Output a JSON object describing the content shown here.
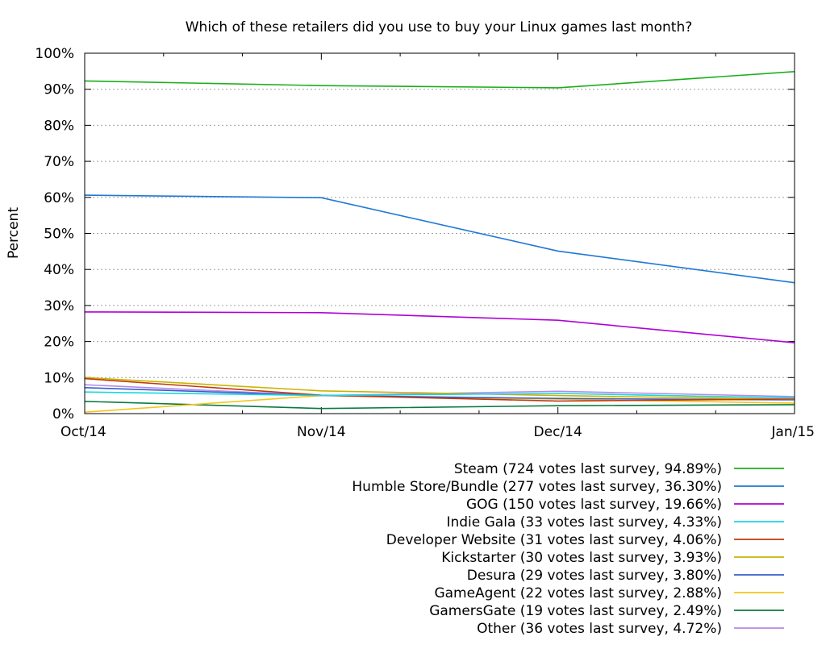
{
  "chart_data": {
    "type": "line",
    "title": "Which of these retailers did you use to buy your Linux games last month?",
    "ylabel": "Percent",
    "xlabel": "",
    "categories": [
      "Oct/14",
      "Nov/14",
      "Dec/14",
      "Jan/15"
    ],
    "ylim": [
      0,
      100
    ],
    "yticks": [
      0,
      10,
      20,
      30,
      40,
      50,
      60,
      70,
      80,
      90,
      100
    ],
    "ytick_labels": [
      "0%",
      "10%",
      "20%",
      "30%",
      "40%",
      "50%",
      "60%",
      "70%",
      "80%",
      "90%",
      "100%"
    ],
    "grid": "horizontal dotted",
    "legend_position": "bottom-right, below plot",
    "series": [
      {
        "name": "Steam (724 votes last survey, 94.89%)",
        "color": "#1aaf1a",
        "values": [
          92.3,
          91.0,
          90.4,
          94.89
        ]
      },
      {
        "name": "Humble Store/Bundle (277 votes last survey, 36.30%)",
        "color": "#1f78d6",
        "values": [
          60.6,
          59.9,
          45.1,
          36.3
        ]
      },
      {
        "name": "GOG (150 votes last survey, 19.66%)",
        "color": "#b000d8",
        "values": [
          28.2,
          28.0,
          25.9,
          19.66
        ]
      },
      {
        "name": "Indie Gala (33 votes last survey, 4.33%)",
        "color": "#19d6e0",
        "values": [
          6.0,
          5.0,
          5.6,
          4.33
        ]
      },
      {
        "name": "Developer Website (31 votes last survey, 4.06%)",
        "color": "#c0390b",
        "values": [
          9.7,
          5.1,
          3.5,
          4.06
        ]
      },
      {
        "name": "Kickstarter (30 votes last survey, 3.93%)",
        "color": "#c8b400",
        "values": [
          10.0,
          6.3,
          5.0,
          3.93
        ]
      },
      {
        "name": "Desura (29 votes last survey, 3.80%)",
        "color": "#3a5fcd",
        "values": [
          7.2,
          5.0,
          4.2,
          3.8
        ]
      },
      {
        "name": "GameAgent (22 votes last survey, 2.88%)",
        "color": "#f5c518",
        "values": [
          0.4,
          5.0,
          4.0,
          2.88
        ]
      },
      {
        "name": "GamersGate (19 votes last survey, 2.49%)",
        "color": "#0b7a3e",
        "values": [
          3.4,
          1.4,
          2.2,
          2.49
        ]
      },
      {
        "name": "Other (36 votes last survey, 4.72%)",
        "color": "#b58ae8",
        "values": [
          8.0,
          5.0,
          6.2,
          4.72
        ]
      }
    ]
  }
}
